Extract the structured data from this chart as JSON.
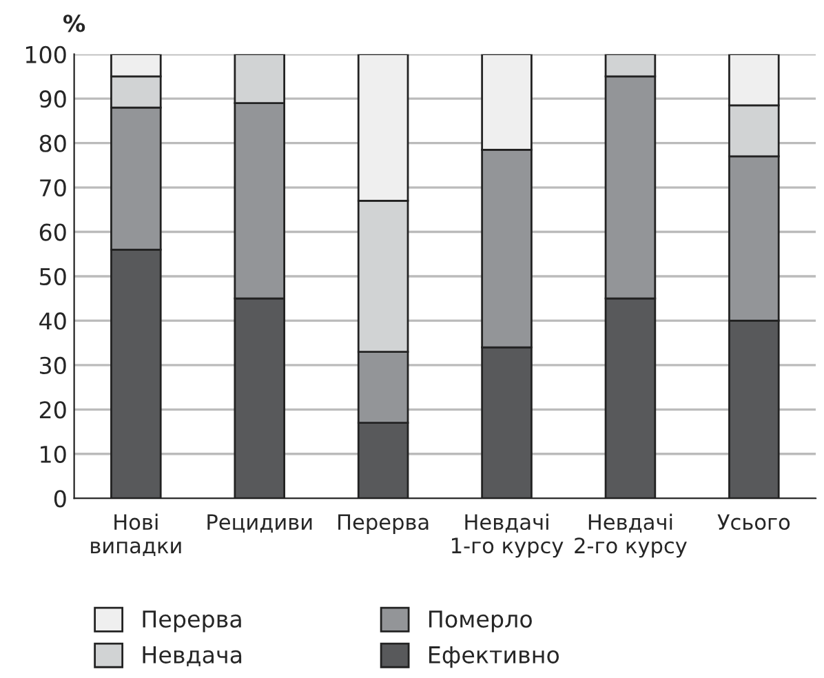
{
  "chart_data": {
    "type": "bar",
    "stacked": true,
    "ylabel": "%",
    "categories": [
      "Нові\nвипадки",
      "Рецидиви",
      "Перерва",
      "Невдачі\n1-го курсу",
      "Невдачі\n2-го курсу",
      "Усього"
    ],
    "series": [
      {
        "name": "Ефективно",
        "color": "#58595b",
        "values": [
          56,
          45,
          17,
          34,
          45,
          40
        ]
      },
      {
        "name": "Померло",
        "color": "#939598",
        "values": [
          32,
          44,
          16,
          44.5,
          50,
          37
        ]
      },
      {
        "name": "Невдача",
        "color": "#d1d3d4",
        "values": [
          7,
          11,
          34,
          null,
          5,
          11.5
        ]
      },
      {
        "name": "Перерва",
        "color": "#efefef",
        "values": [
          5,
          null,
          33,
          21.5,
          null,
          11.5
        ]
      }
    ],
    "ylim": [
      0,
      100
    ],
    "yticks": [
      0,
      10,
      20,
      30,
      40,
      50,
      60,
      70,
      80,
      90,
      100
    ],
    "grid": "y",
    "legend": "bottom"
  }
}
